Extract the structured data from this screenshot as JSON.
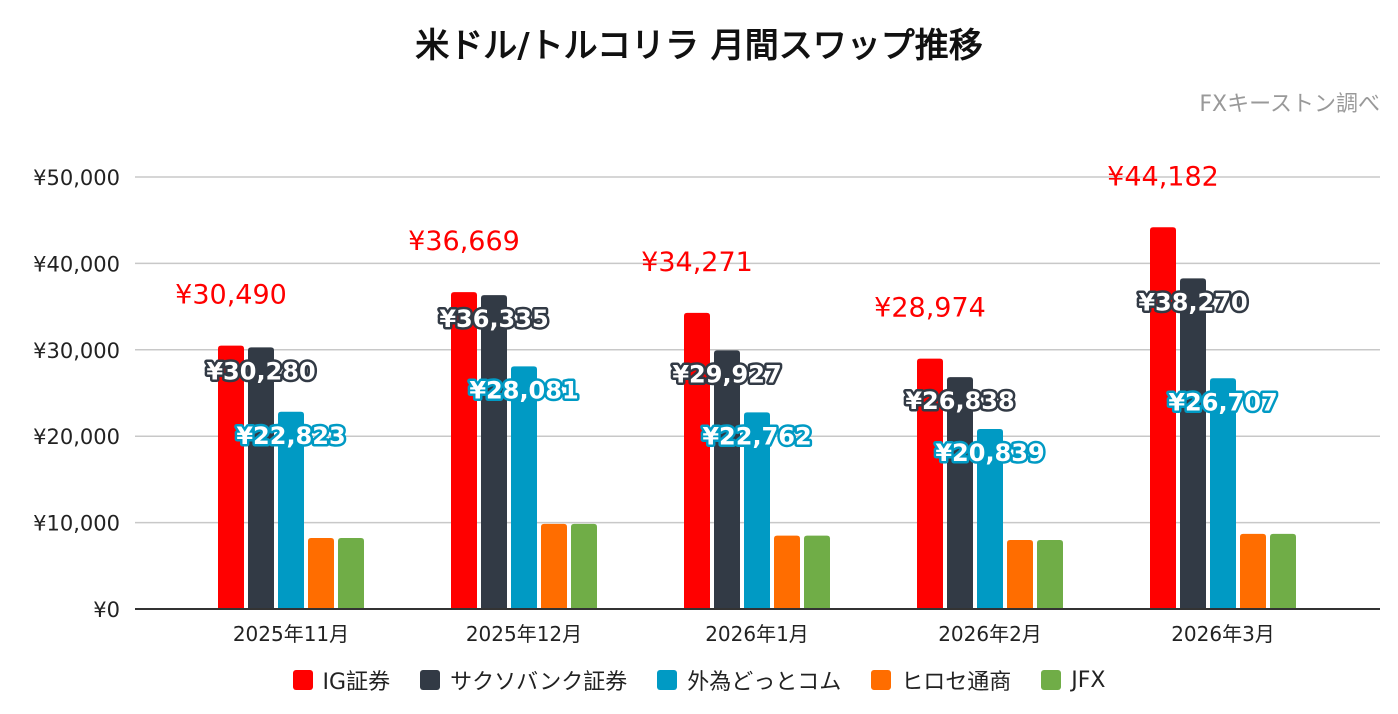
{
  "title": "米ドル/トルコリラ 月間スワップ推移",
  "source": "FXキーストン調べ",
  "chart_data": {
    "type": "bar",
    "title": "米ドル/トルコリラ 月間スワップ推移",
    "categories": [
      "2025年11月",
      "2025年12月",
      "2026年1月",
      "2026年2月",
      "2026年3月"
    ],
    "ylim": [
      0,
      50000
    ],
    "yticks": [
      0,
      10000,
      20000,
      30000,
      40000,
      50000
    ],
    "ytick_labels": [
      "¥0",
      "¥10,000",
      "¥20,000",
      "¥30,000",
      "¥40,000",
      "¥50,000"
    ],
    "grid": true,
    "legend": "bottom",
    "series": [
      {
        "name": "IG証券",
        "color": "#ff0000",
        "values": [
          30490,
          36669,
          34271,
          28974,
          44182
        ],
        "labels": [
          "¥30,490",
          "¥36,669",
          "¥34,271",
          "¥28,974",
          "¥44,182"
        ]
      },
      {
        "name": "サクソバンク証券",
        "color": "#323a45",
        "values": [
          30280,
          36335,
          29927,
          26838,
          38270
        ],
        "labels": [
          "¥30,280",
          "¥36,335",
          "¥29,927",
          "¥26,838",
          "¥38,270"
        ]
      },
      {
        "name": "外為どっとコム",
        "color": "#009ac4",
        "values": [
          22823,
          28081,
          22762,
          20839,
          26707
        ],
        "labels": [
          "¥22,823",
          "¥28,081",
          "¥22,762",
          "¥20,839",
          "¥26,707"
        ]
      },
      {
        "name": "ヒロセ通商",
        "color": "#ff6d00",
        "values": [
          8220,
          9850,
          8490,
          7990,
          8690
        ]
      },
      {
        "name": "JFX",
        "color": "#70ad47",
        "values": [
          8220,
          9850,
          8490,
          7990,
          8690
        ]
      }
    ]
  }
}
